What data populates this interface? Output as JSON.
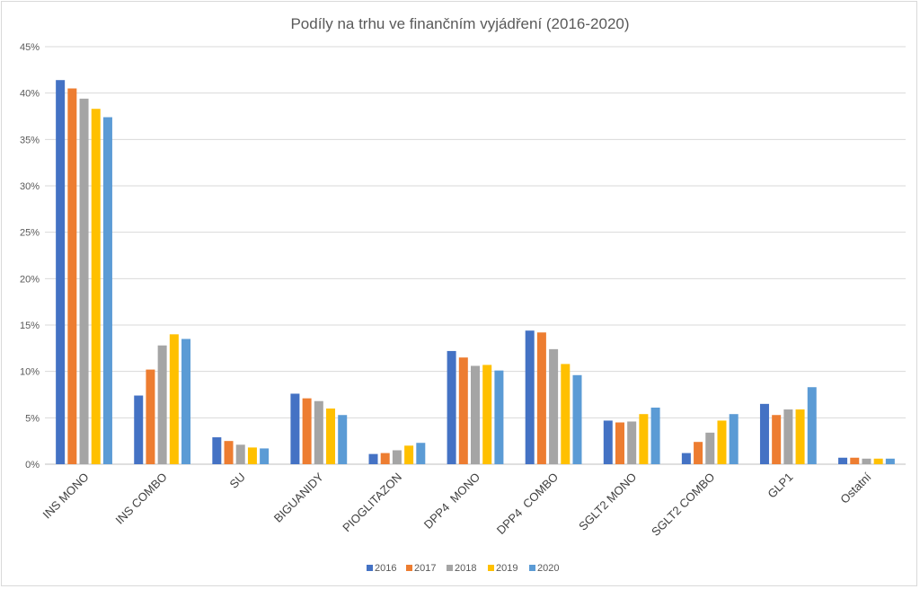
{
  "chart_data": {
    "type": "bar",
    "title": "Podíly na trhu ve finančním vyjádření (2016-2020)",
    "xlabel": "",
    "ylabel": "",
    "ylim": [
      0,
      45
    ],
    "yticks": [
      0,
      5,
      10,
      15,
      20,
      25,
      30,
      35,
      40,
      45
    ],
    "ytick_labels": [
      "0%",
      "5%",
      "10%",
      "15%",
      "20%",
      "25%",
      "30%",
      "35%",
      "40%",
      "45%"
    ],
    "grid": true,
    "legend_position": "bottom",
    "categories": [
      "INS MONO",
      "INS COMBO",
      "SU",
      "BIGUANIDY",
      "PIOGLITAZON",
      "DPP4  MONO",
      "DPP4  COMBO",
      "SGLT2 MONO",
      "SGLT2 COMBO",
      "GLP1",
      "Ostatní"
    ],
    "series": [
      {
        "name": "2016",
        "color": "#4472c4",
        "values": [
          41.4,
          7.4,
          2.9,
          7.6,
          1.1,
          12.2,
          14.4,
          4.7,
          1.2,
          6.5,
          0.7
        ]
      },
      {
        "name": "2017",
        "color": "#ed7d31",
        "values": [
          40.5,
          10.2,
          2.5,
          7.1,
          1.2,
          11.5,
          14.2,
          4.5,
          2.4,
          5.3,
          0.7
        ]
      },
      {
        "name": "2018",
        "color": "#a5a5a5",
        "values": [
          39.4,
          12.8,
          2.1,
          6.8,
          1.5,
          10.6,
          12.4,
          4.6,
          3.4,
          5.9,
          0.6
        ]
      },
      {
        "name": "2019",
        "color": "#ffc000",
        "values": [
          38.3,
          14.0,
          1.8,
          6.0,
          2.0,
          10.7,
          10.8,
          5.4,
          4.7,
          5.9,
          0.6
        ]
      },
      {
        "name": "2020",
        "color": "#5b9bd5",
        "values": [
          37.4,
          13.5,
          1.7,
          5.3,
          2.3,
          10.1,
          9.6,
          6.1,
          5.4,
          8.3,
          0.6
        ]
      }
    ]
  }
}
